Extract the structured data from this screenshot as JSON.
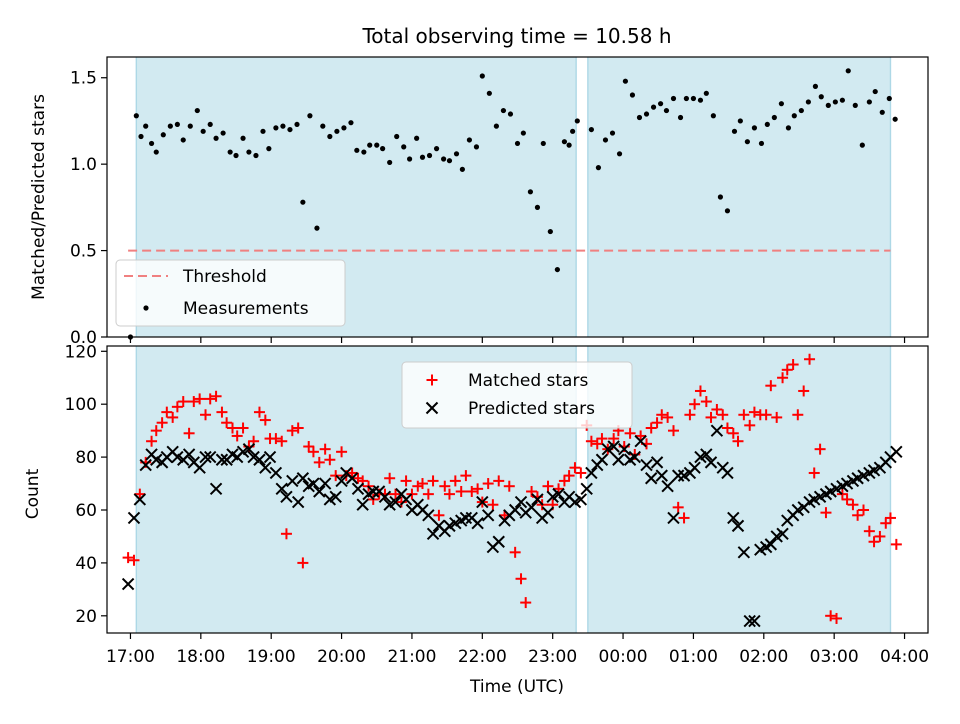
{
  "title": "Total observing time = 10.58 h",
  "colors": {
    "observing_span": "#add8e6",
    "threshold": "#f08080",
    "measurements": "#000000",
    "matched": "#ff0000",
    "predicted": "#000000"
  },
  "chart_data": [
    {
      "type": "scatter",
      "title": "Total observing time = 10.58 h",
      "ylabel": "Matched/Predicted stars",
      "xlabel": "",
      "xlim": [
        "16:40",
        "04:20"
      ],
      "ylim": [
        0,
        1.62
      ],
      "yticks": [
        "0.0",
        "0.5",
        "1.0",
        "1.5"
      ],
      "grid": false,
      "legend": "lower-left",
      "spans": [
        [
          "17:05",
          "23:20"
        ],
        [
          "23:30",
          "03:48"
        ]
      ],
      "threshold": {
        "name": "Threshold",
        "value": 0.5,
        "x": [
          "16:58",
          "03:48"
        ]
      },
      "series": [
        {
          "name": "Measurements",
          "x": [
            "17:00",
            "17:05",
            "17:09",
            "17:13",
            "17:18",
            "17:22",
            "17:28",
            "17:34",
            "17:40",
            "17:45",
            "17:51",
            "17:57",
            "18:02",
            "18:08",
            "18:13",
            "18:19",
            "18:25",
            "18:30",
            "18:36",
            "18:41",
            "18:47",
            "18:53",
            "18:58",
            "19:04",
            "19:10",
            "19:16",
            "19:22",
            "19:27",
            "19:33",
            "19:39",
            "19:44",
            "19:50",
            "19:56",
            "20:02",
            "20:08",
            "20:13",
            "20:19",
            "20:24",
            "20:30",
            "20:35",
            "20:41",
            "20:47",
            "20:53",
            "20:58",
            "21:04",
            "21:09",
            "21:15",
            "21:21",
            "21:27",
            "21:32",
            "21:38",
            "21:43",
            "21:49",
            "21:55",
            "22:00",
            "22:06",
            "22:12",
            "22:18",
            "22:24",
            "22:30",
            "22:35",
            "22:41",
            "22:47",
            "22:52",
            "22:58",
            "23:04",
            "23:10",
            "23:14",
            "23:17",
            "23:21",
            "23:33",
            "23:39",
            "23:45",
            "23:51",
            "23:57",
            "00:02",
            "00:08",
            "00:14",
            "00:20",
            "00:26",
            "00:32",
            "00:37",
            "00:43",
            "00:49",
            "00:54",
            "01:00",
            "01:06",
            "01:11",
            "01:17",
            "01:23",
            "01:29",
            "01:35",
            "01:40",
            "01:46",
            "01:52",
            "01:58",
            "02:03",
            "02:09",
            "02:15",
            "02:21",
            "02:26",
            "02:32",
            "02:38",
            "02:44",
            "02:49",
            "02:55",
            "03:01",
            "03:07",
            "03:12",
            "03:18",
            "03:24",
            "03:30",
            "03:35",
            "03:41",
            "03:47",
            "03:52"
          ],
          "y": [
            0.0,
            1.28,
            1.16,
            1.22,
            1.12,
            1.07,
            1.17,
            1.22,
            1.23,
            1.14,
            1.22,
            1.31,
            1.19,
            1.23,
            1.15,
            1.18,
            1.07,
            1.05,
            1.15,
            1.07,
            1.05,
            1.19,
            1.09,
            1.21,
            1.22,
            1.2,
            1.23,
            0.78,
            1.28,
            0.63,
            1.22,
            1.16,
            1.19,
            1.21,
            1.24,
            1.08,
            1.07,
            1.11,
            1.11,
            1.09,
            1.01,
            1.16,
            1.1,
            1.03,
            1.15,
            1.04,
            1.05,
            1.09,
            1.03,
            1.02,
            1.06,
            0.97,
            1.14,
            1.1,
            1.51,
            1.41,
            1.22,
            1.31,
            1.29,
            1.12,
            1.18,
            0.84,
            0.75,
            1.12,
            0.61,
            0.39,
            1.13,
            1.11,
            1.19,
            1.25,
            1.2,
            0.98,
            1.14,
            1.18,
            1.06,
            1.48,
            1.4,
            1.27,
            1.29,
            1.33,
            1.35,
            1.31,
            1.38,
            1.27,
            1.38,
            1.38,
            1.37,
            1.41,
            1.28,
            0.81,
            0.73,
            1.19,
            1.25,
            1.13,
            1.21,
            1.12,
            1.23,
            1.27,
            1.35,
            1.21,
            1.28,
            1.31,
            1.36,
            1.45,
            1.39,
            1.34,
            1.36,
            1.37,
            1.54,
            1.34,
            1.11,
            1.36,
            1.42,
            1.3,
            1.38,
            1.26
          ]
        }
      ]
    },
    {
      "type": "scatter",
      "ylabel": "Count",
      "xlabel": "Time (UTC)",
      "xlim": [
        "16:40",
        "04:20"
      ],
      "xticks": [
        "17:00",
        "18:00",
        "19:00",
        "20:00",
        "21:00",
        "22:00",
        "23:00",
        "00:00",
        "01:00",
        "02:00",
        "03:00",
        "04:00"
      ],
      "ylim": [
        13.5,
        122
      ],
      "yticks": [
        "20",
        "40",
        "60",
        "80",
        "100",
        "120"
      ],
      "grid": false,
      "legend": "top-center",
      "spans": [
        [
          "17:05",
          "23:20"
        ],
        [
          "23:30",
          "03:48"
        ]
      ],
      "series": [
        {
          "name": "Matched stars",
          "marker": "+",
          "x": [
            "16:58",
            "17:03",
            "17:08",
            "17:13",
            "17:18",
            "17:22",
            "17:27",
            "17:31",
            "17:36",
            "17:40",
            "17:45",
            "17:50",
            "17:54",
            "17:59",
            "18:04",
            "18:08",
            "18:13",
            "18:18",
            "18:22",
            "18:27",
            "18:31",
            "18:36",
            "18:41",
            "18:45",
            "18:50",
            "18:55",
            "18:59",
            "19:04",
            "19:09",
            "19:13",
            "19:18",
            "19:23",
            "19:27",
            "19:32",
            "19:36",
            "19:41",
            "19:46",
            "19:50",
            "19:55",
            "20:00",
            "20:04",
            "20:09",
            "20:14",
            "20:18",
            "20:23",
            "20:27",
            "20:32",
            "20:37",
            "20:41",
            "20:46",
            "20:51",
            "20:55",
            "21:00",
            "21:05",
            "21:09",
            "21:14",
            "21:18",
            "21:23",
            "21:28",
            "21:32",
            "21:37",
            "21:42",
            "21:46",
            "21:51",
            "21:56",
            "22:00",
            "22:05",
            "22:09",
            "22:14",
            "22:19",
            "22:23",
            "22:28",
            "22:33",
            "22:37",
            "22:42",
            "22:47",
            "22:51",
            "22:56",
            "23:00",
            "23:05",
            "23:10",
            "23:14",
            "23:19",
            "23:24",
            "23:29",
            "23:33",
            "23:38",
            "23:42",
            "23:47",
            "23:52",
            "23:56",
            "00:01",
            "00:06",
            "00:10",
            "00:15",
            "00:20",
            "00:24",
            "00:29",
            "00:33",
            "00:38",
            "00:43",
            "00:47",
            "00:52",
            "00:57",
            "01:01",
            "01:06",
            "01:11",
            "01:15",
            "01:20",
            "01:25",
            "01:29",
            "01:34",
            "01:38",
            "01:43",
            "01:48",
            "01:52",
            "01:57",
            "02:02",
            "02:06",
            "02:11",
            "02:16",
            "02:20",
            "02:25",
            "02:29",
            "02:34",
            "02:39",
            "02:43",
            "02:48",
            "02:53",
            "02:57",
            "03:02",
            "03:07",
            "03:11",
            "03:16",
            "03:20",
            "03:25",
            "03:30",
            "03:34",
            "03:39",
            "03:44",
            "03:48",
            "03:53"
          ],
          "y": [
            42,
            41,
            66,
            78,
            86,
            90,
            93,
            97,
            95,
            99,
            101,
            89,
            101,
            102,
            96,
            102,
            103,
            97,
            93,
            91,
            88,
            91,
            84,
            86,
            97,
            94,
            87,
            87,
            86,
            51,
            90,
            91,
            40,
            84,
            82,
            78,
            83,
            79,
            73,
            82,
            73,
            74,
            72,
            71,
            69,
            64,
            66,
            66,
            72,
            66,
            63,
            71,
            66,
            69,
            70,
            66,
            71,
            58,
            69,
            66,
            71,
            67,
            73,
            67,
            68,
            63,
            70,
            62,
            71,
            58,
            69,
            44,
            34,
            25,
            67,
            65,
            62,
            69,
            62,
            68,
            71,
            73,
            76,
            74,
            92,
            86,
            85,
            87,
            83,
            87,
            90,
            84,
            89,
            81,
            88,
            85,
            91,
            93,
            96,
            95,
            90,
            61,
            57,
            96,
            100,
            105,
            101,
            95,
            98,
            96,
            91,
            89,
            86,
            96,
            92,
            97,
            96,
            96,
            107,
            95,
            110,
            113,
            115,
            96,
            105,
            117,
            74,
            83,
            59,
            20,
            19,
            66,
            64,
            62,
            58,
            60,
            52,
            48,
            50,
            55,
            57,
            47
          ]
        },
        {
          "name": "Predicted stars",
          "marker": "x",
          "x": [
            "16:58",
            "17:03",
            "17:08",
            "17:13",
            "17:18",
            "17:22",
            "17:27",
            "17:31",
            "17:36",
            "17:40",
            "17:45",
            "17:50",
            "17:54",
            "17:59",
            "18:04",
            "18:08",
            "18:13",
            "18:18",
            "18:22",
            "18:27",
            "18:31",
            "18:36",
            "18:41",
            "18:45",
            "18:50",
            "18:55",
            "18:59",
            "19:04",
            "19:09",
            "19:13",
            "19:18",
            "19:23",
            "19:27",
            "19:32",
            "19:36",
            "19:41",
            "19:46",
            "19:50",
            "19:55",
            "20:00",
            "20:04",
            "20:09",
            "20:14",
            "20:18",
            "20:23",
            "20:27",
            "20:32",
            "20:37",
            "20:41",
            "20:46",
            "20:51",
            "20:55",
            "21:00",
            "21:05",
            "21:09",
            "21:14",
            "21:18",
            "21:23",
            "21:28",
            "21:32",
            "21:37",
            "21:42",
            "21:46",
            "21:51",
            "21:56",
            "22:00",
            "22:05",
            "22:09",
            "22:14",
            "22:19",
            "22:23",
            "22:28",
            "22:33",
            "22:37",
            "22:42",
            "22:47",
            "22:51",
            "22:56",
            "23:00",
            "23:05",
            "23:10",
            "23:14",
            "23:19",
            "23:24",
            "23:29",
            "23:33",
            "23:38",
            "23:42",
            "23:47",
            "23:52",
            "23:56",
            "00:01",
            "00:06",
            "00:10",
            "00:15",
            "00:20",
            "00:24",
            "00:29",
            "00:33",
            "00:38",
            "00:43",
            "00:47",
            "00:52",
            "00:57",
            "01:01",
            "01:06",
            "01:11",
            "01:15",
            "01:20",
            "01:25",
            "01:29",
            "01:34",
            "01:38",
            "01:43",
            "01:48",
            "01:52",
            "01:57",
            "02:02",
            "02:06",
            "02:11",
            "02:16",
            "02:20",
            "02:25",
            "02:29",
            "02:34",
            "02:39",
            "02:43",
            "02:48",
            "02:53",
            "02:57",
            "03:02",
            "03:07",
            "03:11",
            "03:16",
            "03:20",
            "03:25",
            "03:30",
            "03:34",
            "03:39",
            "03:44",
            "03:48",
            "03:53"
          ],
          "y": [
            32,
            57,
            64,
            77,
            81,
            79,
            78,
            80,
            82,
            80,
            79,
            81,
            78,
            76,
            80,
            80,
            68,
            79,
            79,
            81,
            80,
            82,
            83,
            80,
            79,
            76,
            80,
            74,
            68,
            65,
            71,
            63,
            72,
            69,
            70,
            67,
            70,
            64,
            65,
            71,
            74,
            72,
            68,
            62,
            66,
            67,
            67,
            65,
            62,
            63,
            66,
            64,
            60,
            62,
            60,
            58,
            51,
            54,
            52,
            54,
            55,
            56,
            57,
            57,
            55,
            63,
            58,
            46,
            48,
            56,
            58,
            60,
            63,
            59,
            61,
            64,
            57,
            59,
            65,
            66,
            63,
            65,
            63,
            64,
            68,
            74,
            77,
            79,
            83,
            84,
            79,
            83,
            79,
            80,
            86,
            77,
            72,
            78,
            73,
            69,
            57,
            73,
            73,
            74,
            76,
            80,
            81,
            78,
            90,
            76,
            74,
            57,
            54,
            44,
            18,
            18,
            45,
            46,
            47,
            50,
            51,
            56,
            58,
            60,
            61,
            63,
            64,
            65,
            66,
            67,
            68,
            69,
            70,
            71,
            72,
            73,
            74,
            75,
            76,
            78,
            80,
            82
          ]
        }
      ]
    }
  ]
}
